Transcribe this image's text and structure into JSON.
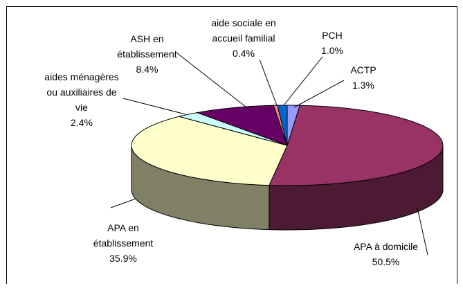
{
  "chart_data": {
    "type": "pie",
    "categories": [
      "ACTP",
      "APA à domicile",
      "APA en établissement",
      "aides ménagères ou auxiliaires de vie",
      "ASH en établissement",
      "aide sociale en accueil familial",
      "PCH"
    ],
    "values": [
      1.3,
      50.5,
      35.9,
      2.4,
      8.4,
      0.4,
      1.0
    ],
    "value_labels": [
      "1.3%",
      "50.5%",
      "35.9%",
      "2.4%",
      "8.4%",
      "0.4%",
      "1.0%"
    ],
    "colors": [
      "#9999ff",
      "#993366",
      "#ffffcc",
      "#ccffff",
      "#660066",
      "#ff8080",
      "#0066cc"
    ]
  }
}
